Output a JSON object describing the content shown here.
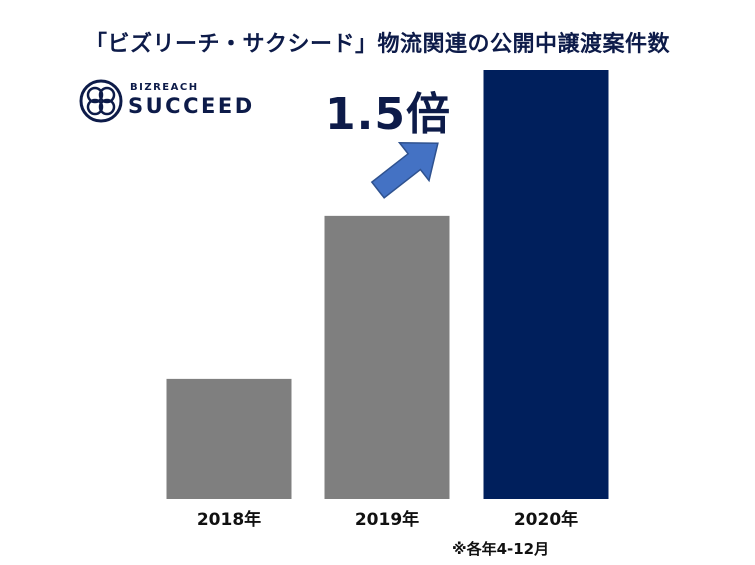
{
  "title": "「ビズリーチ・サクシード」物流関連の公開中譲渡案件数",
  "logo": {
    "brand_small": "BIZREACH",
    "brand_big": "SUCCEED",
    "icon": "interlocking-rings-icon"
  },
  "callout": {
    "text": "1.5倍",
    "arrow_icon": "up-right-arrow-icon"
  },
  "footnote": "※各年4-12月",
  "colors": {
    "past_bar": "#7f7f7f",
    "current_bar": "#001f5c",
    "arrow": "#4472c4",
    "text_dark": "#0d1b49"
  },
  "chart_data": {
    "type": "bar",
    "title": "「ビズリーチ・サクシード」物流関連の公開中譲渡案件数",
    "categories": [
      "2018年",
      "2019年",
      "2020年"
    ],
    "values": [
      28,
      66,
      100
    ],
    "ylim": [
      0,
      100
    ],
    "grid": false,
    "xlabel": "",
    "ylabel": "",
    "annotations": [
      "1.5倍",
      "※各年4-12月"
    ]
  }
}
